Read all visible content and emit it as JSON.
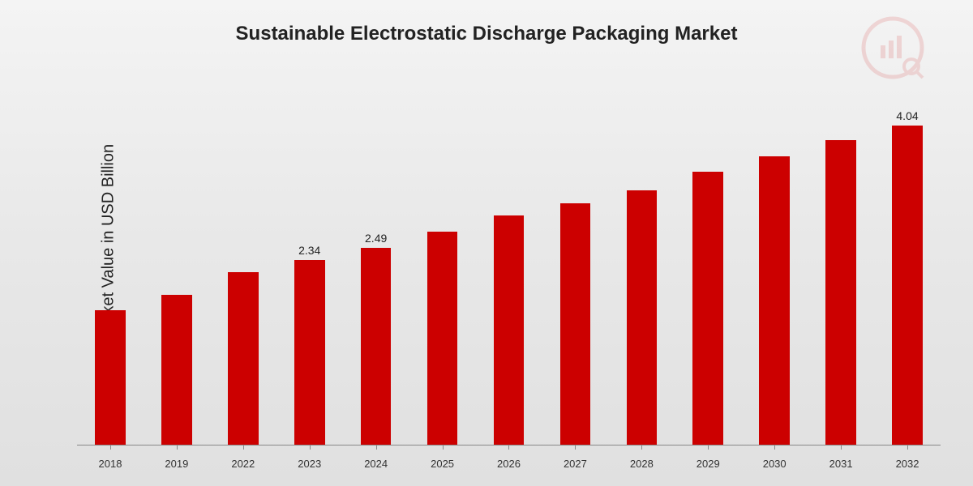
{
  "title": "Sustainable Electrostatic Discharge Packaging Market",
  "ylabel": "Market Value in USD Billion",
  "chart": {
    "type": "bar",
    "categories": [
      "2018",
      "2019",
      "2022",
      "2023",
      "2024",
      "2025",
      "2026",
      "2027",
      "2028",
      "2029",
      "2030",
      "2031",
      "2032"
    ],
    "values": [
      1.7,
      1.9,
      2.18,
      2.34,
      2.49,
      2.7,
      2.9,
      3.05,
      3.22,
      3.45,
      3.65,
      3.85,
      4.04
    ],
    "value_labels": [
      "",
      "",
      "",
      "2.34",
      "2.49",
      "",
      "",
      "",
      "",
      "",
      "",
      "",
      "4.04"
    ],
    "bar_color": "#cc0000",
    "ylim_max": 4.5,
    "title_fontsize": 24,
    "ylabel_fontsize": 20,
    "xlabel_fontsize": 13,
    "value_label_fontsize": 14,
    "axis_color": "#888888",
    "text_color": "#222222",
    "background": "linear-gradient(#f4f4f4,#e0e0e0)",
    "bar_width_pct": 46
  }
}
